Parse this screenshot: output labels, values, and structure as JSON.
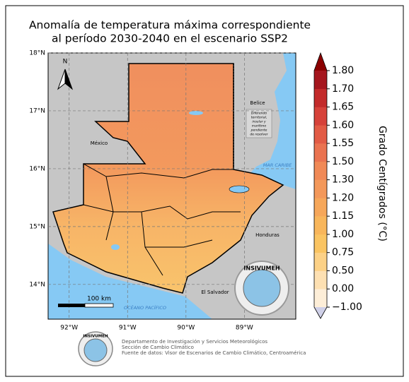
{
  "title": [
    "Anomalía de temperatura máxima correspondiente",
    "al período 2030-2040 en el escenario SSP2"
  ],
  "map": {
    "xlim": [
      -92.36,
      -88.12
    ],
    "ylim": [
      13.4,
      18.0
    ],
    "lon_ticks": [
      {
        "value": -92,
        "label": "92°W"
      },
      {
        "value": -91,
        "label": "91°W"
      },
      {
        "value": -90,
        "label": "90°W"
      },
      {
        "value": -89,
        "label": "89°W"
      }
    ],
    "lat_ticks": [
      {
        "value": 14,
        "label": "14°N"
      },
      {
        "value": 15,
        "label": "15°N"
      },
      {
        "value": 16,
        "label": "16°N"
      },
      {
        "value": 17,
        "label": "17°N"
      },
      {
        "value": 18,
        "label": "18°N"
      }
    ],
    "north": "N",
    "scale": "100 km",
    "places": {
      "mexico": "México",
      "belice": "Belice",
      "dispute": [
        "Diferendo",
        "territorial,",
        "insular y",
        "marítimo",
        "pendiente",
        "de resolver"
      ],
      "caribe": "MAR CARIBE",
      "honduras": "Honduras",
      "salvador": "El Salvador",
      "pacifico": "OCÉANO PACÍFICO"
    },
    "logo": "INSIVUMEH"
  },
  "colorbar": {
    "label": "Grado Centígrados (°C)",
    "ticks": [
      {
        "value": -1.0,
        "label": "−1.00"
      },
      {
        "value": 0.0,
        "label": "0.00"
      },
      {
        "value": 0.5,
        "label": "0.50"
      },
      {
        "value": 0.75,
        "label": "0.75"
      },
      {
        "value": 1.0,
        "label": "1.00"
      },
      {
        "value": 1.15,
        "label": "1.15"
      },
      {
        "value": 1.2,
        "label": "1.20"
      },
      {
        "value": 1.3,
        "label": "1.30"
      },
      {
        "value": 1.5,
        "label": "1.50"
      },
      {
        "value": 1.55,
        "label": "1.55"
      },
      {
        "value": 1.6,
        "label": "1.60"
      },
      {
        "value": 1.65,
        "label": "1.65"
      },
      {
        "value": 1.7,
        "label": "1.70"
      },
      {
        "value": 1.8,
        "label": "1.80"
      }
    ],
    "colors": [
      "#fdeed8",
      "#fde0b2",
      "#fcd186",
      "#fac462",
      "#f8b65b",
      "#f6a75a",
      "#f3985a",
      "#f08956",
      "#ea7350",
      "#e25b45",
      "#d6423a",
      "#c32b2b",
      "#a5161e"
    ],
    "under_color": "#cfd0e8",
    "over_color": "#8b0000"
  },
  "footer": {
    "logo": "INSIVUMEH",
    "lines": [
      "Departamento de Investigación y Servicios Meteorológicos",
      "Sección de Cambio Climático",
      "Fuente de datos: Visor de Escenarios de Cambio Climático, Centroamérica"
    ]
  }
}
